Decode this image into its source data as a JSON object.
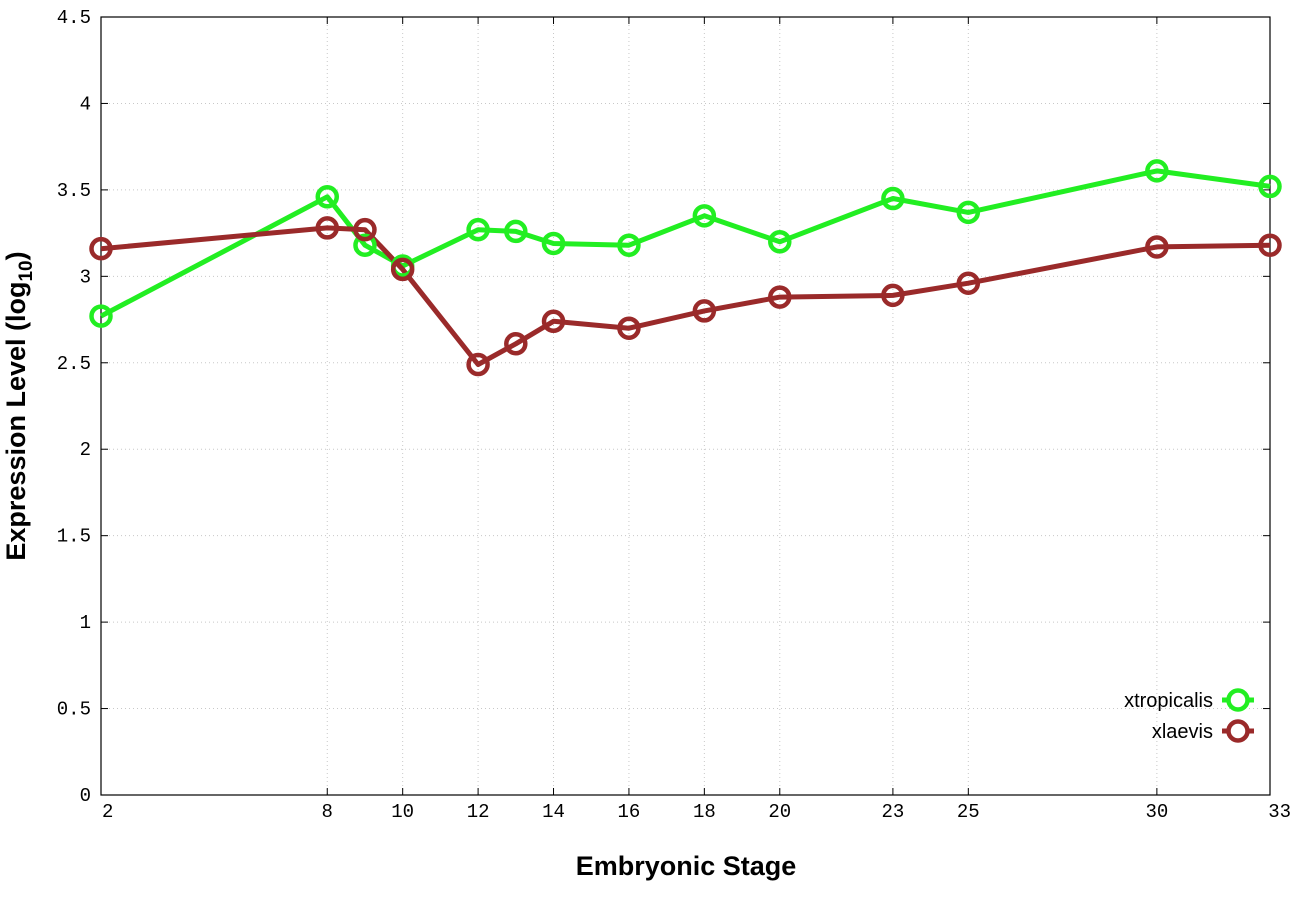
{
  "chart_data": {
    "type": "line",
    "xlabel": "Embryonic Stage",
    "ylabel": "Expression Level (log",
    "ylabel_sub": "10",
    "ylabel_end": ")",
    "xlim": [
      2,
      33
    ],
    "ylim": [
      0,
      4.5
    ],
    "xticks": [
      2,
      8,
      10,
      12,
      14,
      16,
      18,
      20,
      23,
      25,
      30,
      33
    ],
    "xtick_labels": [
      "2",
      "8",
      "10",
      "12",
      "14",
      "16",
      "18",
      "20",
      "23",
      "25",
      "30",
      "33"
    ],
    "yticks": [
      0,
      0.5,
      1,
      1.5,
      2,
      2.5,
      3,
      3.5,
      4,
      4.5
    ],
    "ytick_labels": [
      "0",
      "0.5",
      "1",
      "1.5",
      "2",
      "2.5",
      "3",
      "3.5",
      "4",
      "4.5"
    ],
    "grid": true,
    "legend_position": "bottom-right",
    "series": [
      {
        "name": "xtropicalis",
        "color": "#22ee22",
        "x": [
          2,
          8,
          9,
          10,
          12,
          13,
          14,
          16,
          18,
          20,
          23,
          25,
          30,
          33
        ],
        "y": [
          2.77,
          3.46,
          3.18,
          3.06,
          3.27,
          3.26,
          3.19,
          3.18,
          3.35,
          3.2,
          3.45,
          3.37,
          3.61,
          3.52
        ]
      },
      {
        "name": "xlaevis",
        "color": "#9a2a2a",
        "x": [
          2,
          8,
          9,
          10,
          12,
          13,
          14,
          16,
          18,
          20,
          23,
          25,
          30,
          33
        ],
        "y": [
          3.16,
          3.28,
          3.27,
          3.04,
          2.49,
          2.61,
          2.74,
          2.7,
          2.8,
          2.88,
          2.89,
          2.96,
          3.17,
          3.18
        ]
      }
    ]
  }
}
